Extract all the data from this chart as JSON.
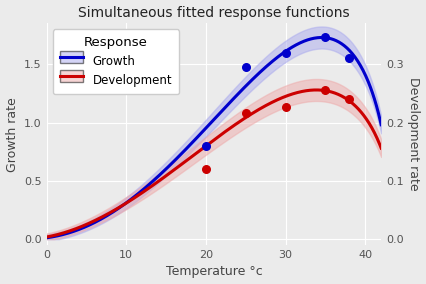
{
  "title": "Simultaneous fitted response functions",
  "xlabel": "Temperature °c",
  "ylabel_left": "Growth rate",
  "ylabel_right": "Development rate",
  "legend_title": "Response",
  "legend_labels": [
    "Growth",
    "Development"
  ],
  "bg_color": "#EBEBEB",
  "grid_color": "white",
  "blue_points_x": [
    20,
    25,
    30,
    35,
    38
  ],
  "blue_points_y": [
    0.8,
    1.48,
    1.6,
    1.73,
    1.55
  ],
  "red_points_x": [
    20,
    25,
    30,
    35,
    38
  ],
  "red_points_y": [
    0.6,
    1.08,
    1.13,
    1.28,
    1.2
  ],
  "blue_line_color": "#0000CC",
  "blue_band_color": "#AAAAEE",
  "red_line_color": "#CC0000",
  "red_band_color": "#EEAAAA",
  "left_ylim": [
    -0.05,
    1.85
  ],
  "right_ylim": [
    -0.01,
    0.37
  ],
  "left_yticks": [
    0.0,
    0.5,
    1.0,
    1.5
  ],
  "right_yticks": [
    0.0,
    0.1,
    0.2,
    0.3
  ],
  "xticks": [
    0,
    10,
    20,
    30,
    40
  ],
  "xlim": [
    0,
    42
  ],
  "figsize": [
    4.26,
    2.84
  ],
  "dpi": 100
}
